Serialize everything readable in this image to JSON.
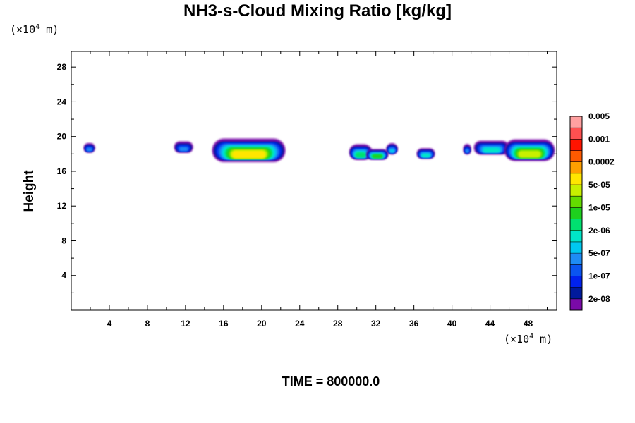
{
  "chart_data": {
    "type": "heatmap",
    "title": "NH3-s-Cloud Mixing Ratio [kg/kg]",
    "ylabel": "Height",
    "xlabel": "",
    "x_unit": "(×10",
    "x_unit_exp": "4",
    "x_unit_tail": " m)",
    "y_unit": "(×10",
    "y_unit_exp": "4",
    "y_unit_tail": " m)",
    "footer": "TIME = 800000.0",
    "xlim": [
      0,
      51
    ],
    "ylim": [
      0,
      29.8
    ],
    "x_ticks": [
      4,
      8,
      12,
      16,
      20,
      24,
      28,
      32,
      36,
      40,
      44,
      48
    ],
    "y_ticks": [
      4,
      8,
      12,
      16,
      20,
      24,
      28
    ],
    "colorbar": {
      "colors": [
        "#7a0aa8",
        "#001a9c",
        "#0022ee",
        "#0a55f0",
        "#1e8cf5",
        "#00c8f0",
        "#00e6c8",
        "#00e070",
        "#1ed01e",
        "#64dc00",
        "#c8f000",
        "#ffe600",
        "#ffa000",
        "#ff5a00",
        "#ff1400",
        "#ff5050",
        "#ffa0a0"
      ],
      "labels": [
        "2e-08",
        "1e-07",
        "5e-07",
        "2e-06",
        "1e-05",
        "5e-05",
        "0.0002",
        "0.001",
        "0.005"
      ]
    },
    "clouds": [
      {
        "x0": 1.3,
        "x1": 2.5,
        "y0": 18.2,
        "y1": 19.3,
        "level": 4
      },
      {
        "x0": 10.8,
        "x1": 12.8,
        "y0": 18.2,
        "y1": 19.5,
        "level": 4
      },
      {
        "x0": 14.8,
        "x1": 22.5,
        "y0": 17.2,
        "y1": 19.9,
        "level": 11
      },
      {
        "x0": 29.2,
        "x1": 31.6,
        "y0": 17.4,
        "y1": 19.2,
        "level": 7
      },
      {
        "x0": 31.0,
        "x1": 33.3,
        "y0": 17.4,
        "y1": 18.6,
        "level": 8
      },
      {
        "x0": 33.1,
        "x1": 34.3,
        "y0": 18.0,
        "y1": 19.3,
        "level": 5
      },
      {
        "x0": 36.3,
        "x1": 38.2,
        "y0": 17.5,
        "y1": 18.7,
        "level": 6
      },
      {
        "x0": 41.2,
        "x1": 42.0,
        "y0": 18.0,
        "y1": 19.2,
        "level": 4
      },
      {
        "x0": 42.3,
        "x1": 46.0,
        "y0": 18.0,
        "y1": 19.6,
        "level": 6
      },
      {
        "x0": 45.5,
        "x1": 50.8,
        "y0": 17.3,
        "y1": 19.8,
        "level": 10
      }
    ]
  }
}
